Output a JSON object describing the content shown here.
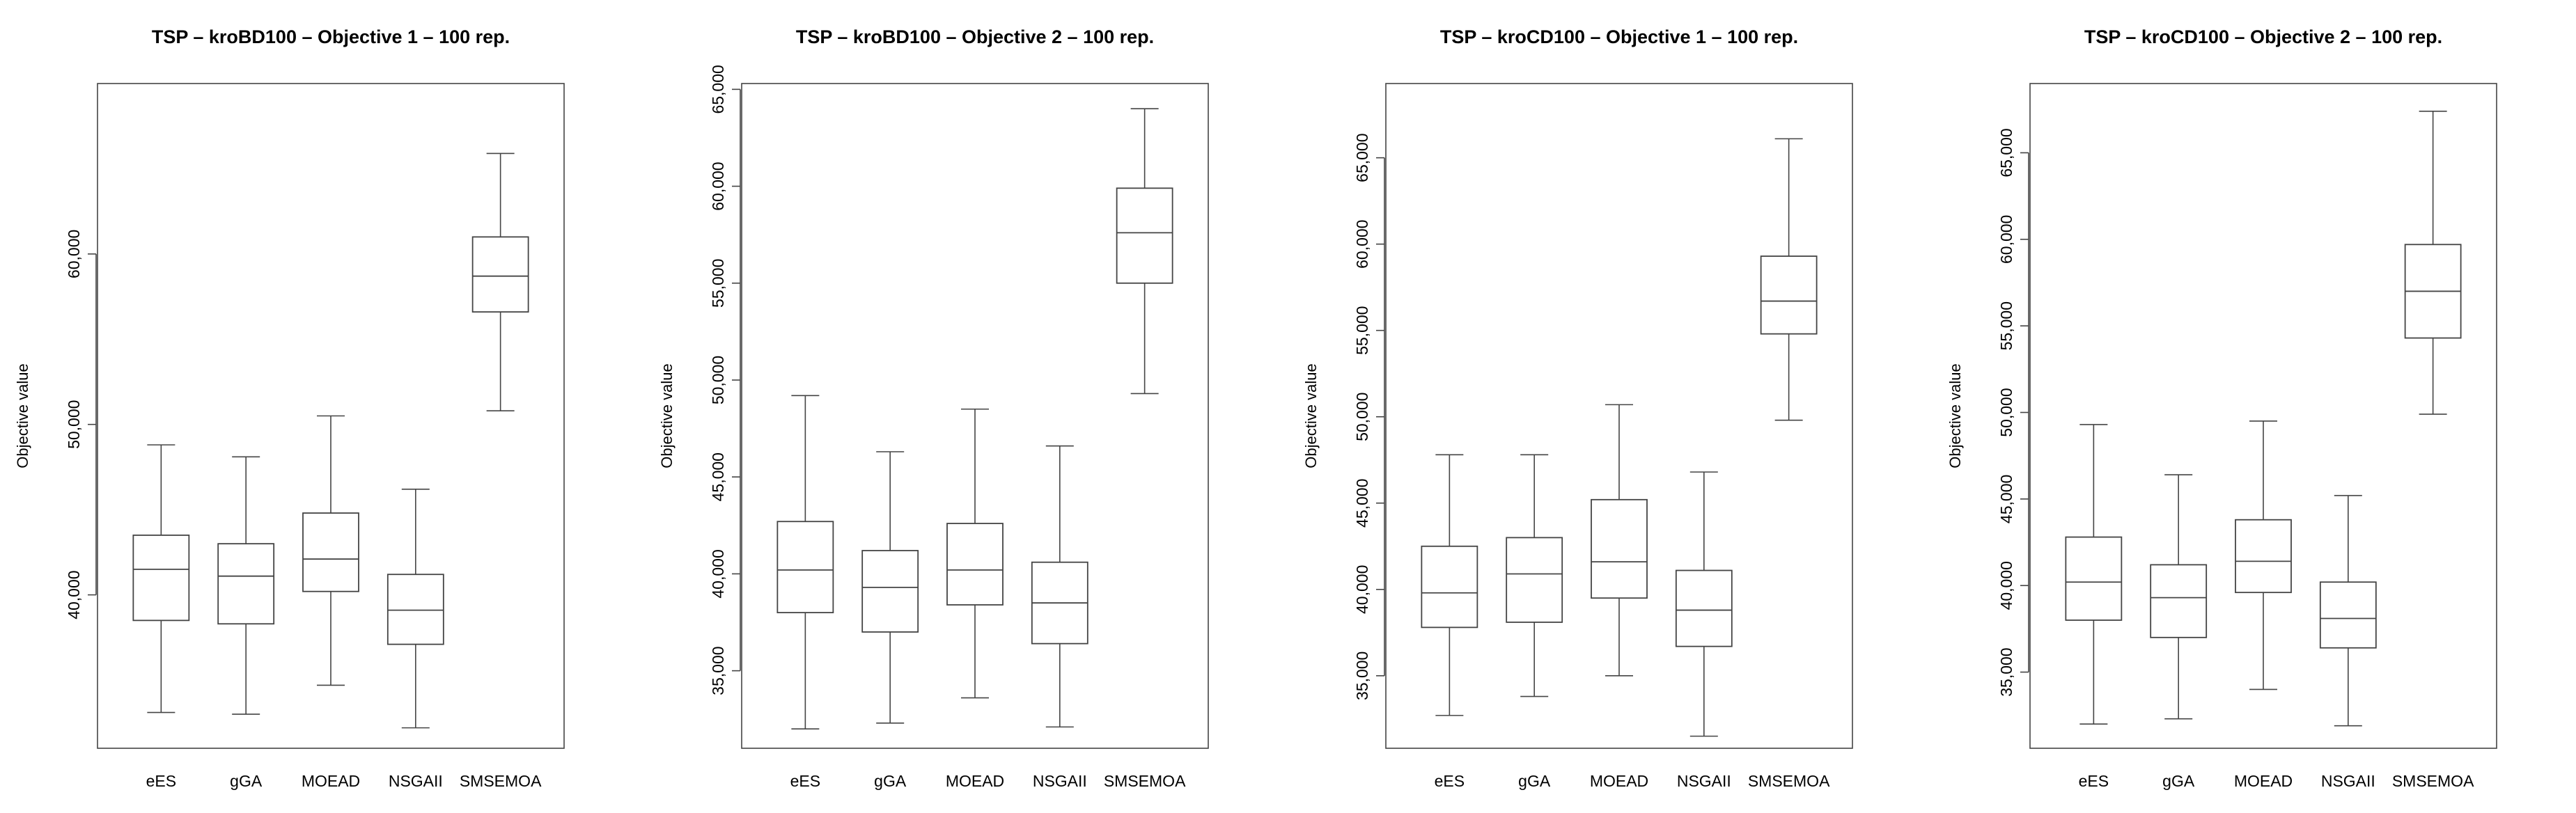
{
  "chart_data": [
    {
      "type": "box",
      "title": "TSP – kroBD100 – Objective 1 – 100 rep.",
      "ylabel": "Objective value",
      "ylim": [
        31000,
        70000
      ],
      "yticks": [
        40000,
        50000,
        60000
      ],
      "ytick_labels": [
        "40,000",
        "50,000",
        "60,000"
      ],
      "categories": [
        "eES",
        "gGA",
        "MOEAD",
        "NSGAII",
        "SMSEMOA"
      ],
      "boxes": [
        {
          "min": 33100,
          "q1": 38500,
          "median": 41500,
          "q3": 43500,
          "max": 48800
        },
        {
          "min": 33000,
          "q1": 38300,
          "median": 41100,
          "q3": 43000,
          "max": 48100
        },
        {
          "min": 34700,
          "q1": 40200,
          "median": 42100,
          "q3": 44800,
          "max": 50500
        },
        {
          "min": 32200,
          "q1": 37100,
          "median": 39100,
          "q3": 41200,
          "max": 46200
        },
        {
          "min": 50800,
          "q1": 56600,
          "median": 58700,
          "q3": 61000,
          "max": 65900
        }
      ]
    },
    {
      "type": "box",
      "title": "TSP – kroBD100 – Objective 2 – 100 rep.",
      "ylabel": "Objective value",
      "ylim": [
        31000,
        65300
      ],
      "yticks": [
        35000,
        40000,
        45000,
        50000,
        55000,
        60000,
        65000
      ],
      "ytick_labels": [
        "35,000",
        "40,000",
        "45,000",
        "50,000",
        "55,000",
        "60,000",
        "65,000"
      ],
      "categories": [
        "eES",
        "gGA",
        "MOEAD",
        "NSGAII",
        "SMSEMOA"
      ],
      "boxes": [
        {
          "min": 32000,
          "q1": 38000,
          "median": 40200,
          "q3": 42700,
          "max": 49200
        },
        {
          "min": 32300,
          "q1": 37000,
          "median": 39300,
          "q3": 41200,
          "max": 46300
        },
        {
          "min": 33600,
          "q1": 38400,
          "median": 40200,
          "q3": 42600,
          "max": 48500
        },
        {
          "min": 32100,
          "q1": 36400,
          "median": 38500,
          "q3": 40600,
          "max": 46600
        },
        {
          "min": 49300,
          "q1": 55000,
          "median": 57600,
          "q3": 59900,
          "max": 64000
        }
      ]
    },
    {
      "type": "box",
      "title": "TSP – kroCD100 – Objective 1 – 100 rep.",
      "ylabel": "Objective value",
      "ylim": [
        30800,
        69300
      ],
      "yticks": [
        35000,
        40000,
        45000,
        50000,
        55000,
        60000,
        65000
      ],
      "ytick_labels": [
        "35,000",
        "40,000",
        "45,000",
        "50,000",
        "55,000",
        "60,000",
        "65,000"
      ],
      "categories": [
        "eES",
        "gGA",
        "MOEAD",
        "NSGAII",
        "SMSEMOA"
      ],
      "boxes": [
        {
          "min": 32700,
          "q1": 37800,
          "median": 39800,
          "q3": 42500,
          "max": 47800
        },
        {
          "min": 33800,
          "q1": 38100,
          "median": 40900,
          "q3": 43000,
          "max": 47800
        },
        {
          "min": 35000,
          "q1": 39500,
          "median": 41600,
          "q3": 45200,
          "max": 50700
        },
        {
          "min": 31500,
          "q1": 36700,
          "median": 38800,
          "q3": 41100,
          "max": 46800
        },
        {
          "min": 49800,
          "q1": 54800,
          "median": 56700,
          "q3": 59300,
          "max": 66100
        }
      ]
    },
    {
      "type": "box",
      "title": "TSP – kroCD100 – Objective 2 – 100 rep.",
      "ylabel": "Objective value",
      "ylim": [
        30600,
        69000
      ],
      "yticks": [
        35000,
        40000,
        45000,
        50000,
        55000,
        60000,
        65000
      ],
      "ytick_labels": [
        "35,000",
        "40,000",
        "45,000",
        "50,000",
        "55,000",
        "60,000",
        "65,000"
      ],
      "categories": [
        "eES",
        "gGA",
        "MOEAD",
        "NSGAII",
        "SMSEMOA"
      ],
      "boxes": [
        {
          "min": 32000,
          "q1": 38000,
          "median": 40200,
          "q3": 42800,
          "max": 49300
        },
        {
          "min": 32300,
          "q1": 37000,
          "median": 39300,
          "q3": 41200,
          "max": 46400
        },
        {
          "min": 34000,
          "q1": 39600,
          "median": 41400,
          "q3": 43800,
          "max": 49500
        },
        {
          "min": 31900,
          "q1": 36400,
          "median": 38100,
          "q3": 40200,
          "max": 45200
        },
        {
          "min": 49900,
          "q1": 54300,
          "median": 57000,
          "q3": 59700,
          "max": 67400
        }
      ]
    }
  ]
}
